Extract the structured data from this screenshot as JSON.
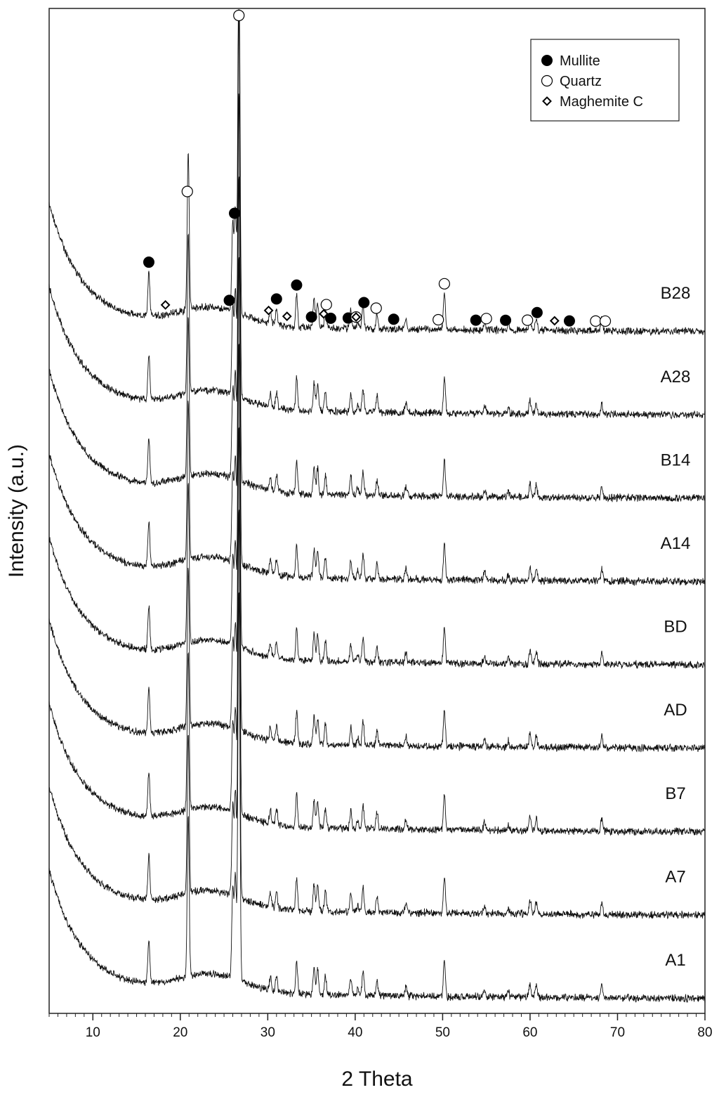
{
  "chart_data": {
    "type": "line",
    "xlabel": "2 Theta",
    "ylabel": "Intensity (a.u.)",
    "xlim": [
      5,
      80
    ],
    "x_ticks": [
      10,
      20,
      30,
      40,
      50,
      60,
      70,
      80
    ],
    "grid": false,
    "legend_position": "top-right",
    "legend": [
      {
        "name": "Mullite",
        "marker": "filled-circle"
      },
      {
        "name": "Quartz",
        "marker": "open-circle"
      },
      {
        "name": "Maghemite C",
        "marker": "open-diamond"
      }
    ],
    "series": [
      {
        "name": "B28"
      },
      {
        "name": "A28"
      },
      {
        "name": "B14"
      },
      {
        "name": "A14"
      },
      {
        "name": "BD"
      },
      {
        "name": "AD"
      },
      {
        "name": "B7"
      },
      {
        "name": "A7"
      },
      {
        "name": "A1"
      }
    ],
    "peaks": [
      {
        "two_theta": 16.4,
        "phase": "Mullite",
        "height": 1.1
      },
      {
        "two_theta": 20.9,
        "phase": "Quartz",
        "height": 4.0
      },
      {
        "two_theta": 26.0,
        "phase": "Mullite",
        "height": 2.2
      },
      {
        "two_theta": 26.3,
        "phase": "Mullite",
        "height": 2.6
      },
      {
        "two_theta": 26.7,
        "phase": "Quartz",
        "height": 9.8
      },
      {
        "two_theta": 30.3,
        "phase": "Maghemite C",
        "height": 0.35
      },
      {
        "two_theta": 31.0,
        "phase": "Mullite",
        "height": 0.4
      },
      {
        "two_theta": 33.3,
        "phase": "Mullite",
        "height": 0.8
      },
      {
        "two_theta": 35.3,
        "phase": "Mullite",
        "height": 0.7
      },
      {
        "two_theta": 35.7,
        "phase": "Maghemite C",
        "height": 0.65
      },
      {
        "two_theta": 36.6,
        "phase": "Quartz",
        "height": 0.5
      },
      {
        "two_theta": 39.5,
        "phase": "Mullite",
        "height": 0.45
      },
      {
        "two_theta": 40.3,
        "phase": "Quartz",
        "height": 0.2
      },
      {
        "two_theta": 40.9,
        "phase": "Mullite",
        "height": 0.6
      },
      {
        "two_theta": 42.5,
        "phase": "Quartz",
        "height": 0.4
      },
      {
        "two_theta": 45.8,
        "phase": "Quartz",
        "height": 0.25
      },
      {
        "two_theta": 50.2,
        "phase": "Quartz",
        "height": 0.9
      },
      {
        "two_theta": 54.8,
        "phase": "Quartz",
        "height": 0.2
      },
      {
        "two_theta": 57.5,
        "phase": "Mullite",
        "height": 0.15
      },
      {
        "two_theta": 60.0,
        "phase": "Quartz",
        "height": 0.35
      },
      {
        "two_theta": 60.7,
        "phase": "Mullite",
        "height": 0.3
      },
      {
        "two_theta": 68.2,
        "phase": "Quartz",
        "height": 0.3
      }
    ],
    "phase_markers": [
      {
        "phase": "Mullite",
        "two_theta": 16.4
      },
      {
        "phase": "Maghemite C",
        "two_theta": 18.3
      },
      {
        "phase": "Quartz",
        "two_theta": 20.8
      },
      {
        "phase": "Mullite",
        "two_theta": 25.6
      },
      {
        "phase": "Mullite",
        "two_theta": 26.2
      },
      {
        "phase": "Quartz",
        "two_theta": 26.7
      },
      {
        "phase": "Maghemite C",
        "two_theta": 30.1
      },
      {
        "phase": "Mullite",
        "two_theta": 31.0
      },
      {
        "phase": "Maghemite C",
        "two_theta": 32.2
      },
      {
        "phase": "Mullite",
        "two_theta": 33.3
      },
      {
        "phase": "Mullite",
        "two_theta": 35.0
      },
      {
        "phase": "Maghemite C",
        "two_theta": 36.4
      },
      {
        "phase": "Quartz",
        "two_theta": 36.7
      },
      {
        "phase": "Mullite",
        "two_theta": 37.2
      },
      {
        "phase": "Mullite",
        "two_theta": 39.2
      },
      {
        "phase": "Quartz",
        "two_theta": 40.1
      },
      {
        "phase": "Maghemite C",
        "two_theta": 40.1
      },
      {
        "phase": "Mullite",
        "two_theta": 41.0
      },
      {
        "phase": "Quartz",
        "two_theta": 42.4
      },
      {
        "phase": "Mullite",
        "two_theta": 44.4
      },
      {
        "phase": "Quartz",
        "two_theta": 49.5
      },
      {
        "phase": "Quartz",
        "two_theta": 50.2
      },
      {
        "phase": "Mullite",
        "two_theta": 53.8
      },
      {
        "phase": "Quartz",
        "two_theta": 55.0
      },
      {
        "phase": "Mullite",
        "two_theta": 57.2
      },
      {
        "phase": "Quartz",
        "two_theta": 59.7
      },
      {
        "phase": "Mullite",
        "two_theta": 60.8
      },
      {
        "phase": "Maghemite C",
        "two_theta": 62.8
      },
      {
        "phase": "Mullite",
        "two_theta": 64.5
      },
      {
        "phase": "Quartz",
        "two_theta": 67.5
      },
      {
        "phase": "Quartz",
        "two_theta": 68.6
      }
    ]
  }
}
